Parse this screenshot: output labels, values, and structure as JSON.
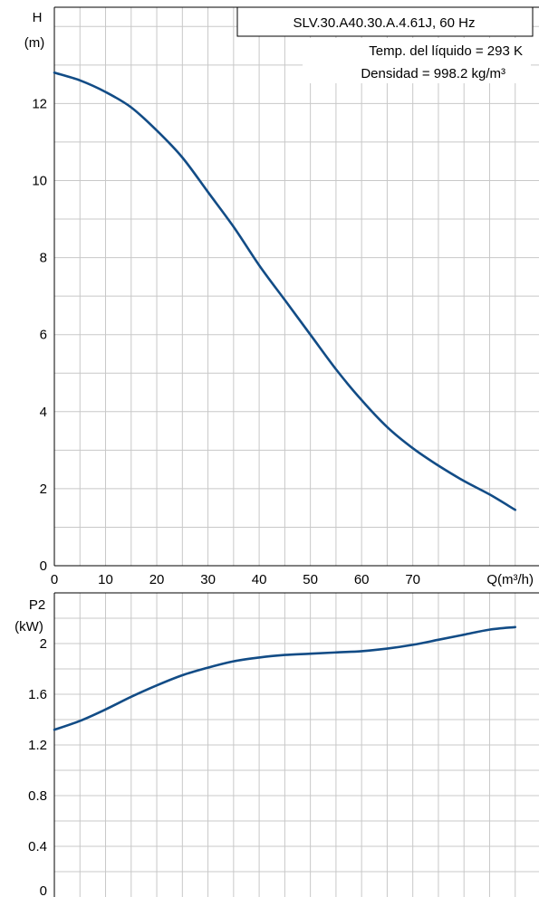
{
  "info": {
    "model": "SLV.30.A40.30.A.4.61J, 60 Hz",
    "temp": "Temp. del líquido = 293 K",
    "density": "Densidad = 998.2 kg/m³"
  },
  "chart_data": [
    {
      "type": "line",
      "ylabel_top": "H",
      "ylabel_unit": "(m)",
      "xlabel": "Q(m³/h)",
      "xlim": [
        0,
        95
      ],
      "ylim": [
        0,
        14.5
      ],
      "x_ticks": [
        "0",
        "10",
        "20",
        "30",
        "40",
        "50",
        "60",
        "70"
      ],
      "y_ticks": [
        "0",
        "2",
        "4",
        "6",
        "8",
        "10",
        "12"
      ],
      "grid": true,
      "series": [
        {
          "color": "#124c86",
          "x": [
            0,
            5,
            10,
            15,
            20,
            25,
            30,
            35,
            40,
            45,
            50,
            55,
            60,
            65,
            70,
            75,
            80,
            85,
            90
          ],
          "y": [
            12.8,
            12.6,
            12.3,
            11.9,
            11.3,
            10.6,
            9.7,
            8.8,
            7.8,
            6.9,
            6.0,
            5.1,
            4.3,
            3.6,
            3.05,
            2.6,
            2.2,
            1.85,
            1.45
          ]
        }
      ]
    },
    {
      "type": "line",
      "ylabel_top": "P2",
      "ylabel_unit": "(kW)",
      "xlim": [
        0,
        95
      ],
      "ylim": [
        0,
        2.4
      ],
      "y_ticks": [
        "0",
        "0.4",
        "0.8",
        "1.2",
        "1.6",
        "2"
      ],
      "grid": true,
      "series": [
        {
          "color": "#124c86",
          "x": [
            0,
            5,
            10,
            15,
            20,
            25,
            30,
            35,
            40,
            45,
            50,
            55,
            60,
            65,
            70,
            75,
            80,
            85,
            90
          ],
          "y": [
            1.32,
            1.39,
            1.48,
            1.58,
            1.67,
            1.75,
            1.81,
            1.86,
            1.89,
            1.91,
            1.92,
            1.93,
            1.94,
            1.96,
            1.99,
            2.03,
            2.07,
            2.11,
            2.13
          ]
        }
      ]
    }
  ]
}
